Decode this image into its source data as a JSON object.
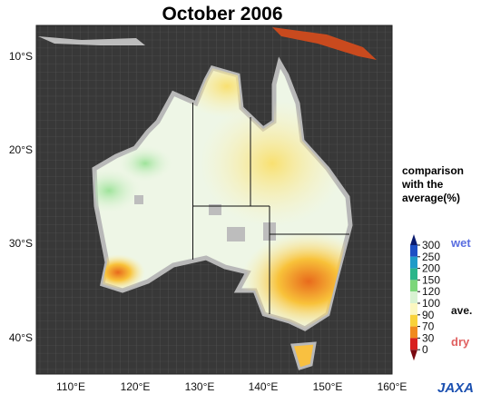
{
  "title": "October 2006",
  "lat_labels": [
    "10°S",
    "20°S",
    "30°S",
    "40°S"
  ],
  "lon_labels": [
    "110°E",
    "120°E",
    "130°E",
    "140°E",
    "150°E",
    "160°E"
  ],
  "legend": {
    "title": [
      "comparison",
      "with the",
      "average(%)"
    ],
    "ticks": [
      300,
      250,
      200,
      150,
      120,
      100,
      90,
      70,
      30,
      0
    ],
    "colors": [
      "#0a1a6e",
      "#1f4fc4",
      "#1f9bc8",
      "#2ab58a",
      "#7cd67a",
      "#d8f2d2",
      "#fbf7c0",
      "#f8d23a",
      "#f08a1e",
      "#d8201e",
      "#7a0a12"
    ],
    "wet": "wet",
    "ave": "ave.",
    "dry": "dry"
  },
  "logo": "JAXA"
}
